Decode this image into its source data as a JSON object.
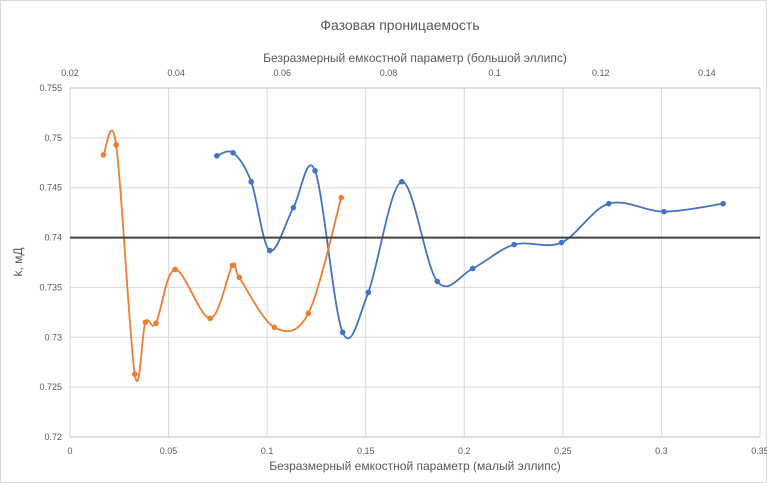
{
  "chart_data": {
    "type": "scatter",
    "title": "Фазовая проницаемость",
    "xlabel": "Безразмерный емкостной параметр (малый эллипс)",
    "x2label": "Безразмерный емкостной параметр (большой эллипс)",
    "ylabel": "k, мД",
    "xlim": [
      0,
      0.35
    ],
    "x2lim": [
      0.02,
      0.15
    ],
    "ylim": [
      0.72,
      0.755
    ],
    "xticks": [
      "0",
      "0.05",
      "0.1",
      "0.15",
      "0.2",
      "0.25",
      "0.3",
      "0.35"
    ],
    "x2ticks": [
      "0.02",
      "0.04",
      "0.06",
      "0.08",
      "0.1",
      "0.12",
      "0.14"
    ],
    "yticks": [
      "0.72",
      "0.725",
      "0.73",
      "0.735",
      "0.74",
      "0.745",
      "0.75",
      "0.755"
    ],
    "grid": true,
    "smooth_lines": true,
    "series": [
      {
        "axis": "bottom",
        "color": "#4472C4",
        "x": [
          0.0745,
          0.0827,
          0.0919,
          0.1013,
          0.1133,
          0.1243,
          0.1383,
          0.1513,
          0.1683,
          0.1863,
          0.2043,
          0.2253,
          0.2493,
          0.2733,
          0.3013,
          0.3313
        ],
        "y": [
          0.7482,
          0.7485,
          0.7456,
          0.7387,
          0.743,
          0.7467,
          0.7305,
          0.7345,
          0.7456,
          0.7356,
          0.7369,
          0.7393,
          0.7395,
          0.7434,
          0.7426,
          0.7434
        ]
      },
      {
        "axis": "top",
        "color": "#ED7D31",
        "x": [
          0.0263,
          0.0287,
          0.0322,
          0.0342,
          0.0362,
          0.0398,
          0.0464,
          0.0506,
          0.0519,
          0.0585,
          0.0649,
          0.0711
        ],
        "y": [
          0.7483,
          0.7493,
          0.7263,
          0.7315,
          0.7314,
          0.7368,
          0.7319,
          0.7372,
          0.736,
          0.731,
          0.7324,
          0.744
        ]
      },
      {
        "axis": "bottom",
        "color": "#404040",
        "type": "hline",
        "y": [
          0.74
        ]
      }
    ]
  }
}
